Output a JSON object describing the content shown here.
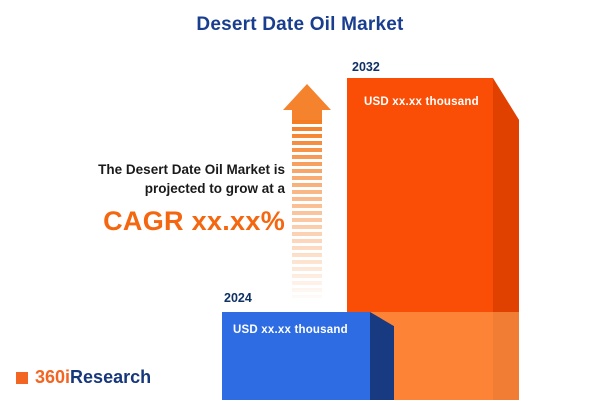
{
  "title": "Desert Date Oil Market",
  "promo_text": {
    "line1": "The Desert Date Oil Market is",
    "line2": "projected to grow at a",
    "cagr": "CAGR xx.xx%"
  },
  "chart_data": {
    "type": "bar",
    "title": "Desert Date Oil Market",
    "categories": [
      "2024",
      "2032"
    ],
    "values": [
      "xx.xx",
      "xx.xx"
    ],
    "unit": "USD thousand",
    "value_labels": [
      "USD xx.xx thousand",
      "USD xx.xx thousand"
    ],
    "bar_colors": [
      "#2e6ce3",
      "#fa4e06"
    ],
    "annotations": [
      "CAGR xx.xx%"
    ],
    "legend": "none",
    "grid": "off"
  },
  "logo": {
    "part_orange": "360i",
    "part_navy": "Research"
  },
  "colors": {
    "navy": "#1a3e8f",
    "accent_orange": "#f4660f",
    "bar_blue": "#2e6ce3",
    "bar_blue_side": "#173a80",
    "bar_orange": "#fa4e06",
    "bar_orange_side": "#e04100",
    "arrow_orange": "#f5832e",
    "logo_orange": "#f26522",
    "logo_navy": "#17377c"
  }
}
